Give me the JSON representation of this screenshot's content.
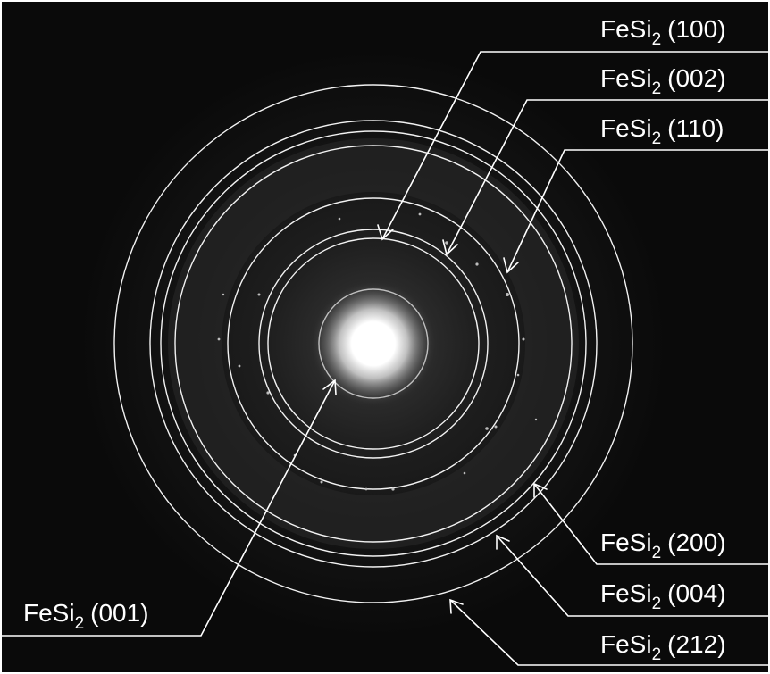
{
  "figure": {
    "colors": {
      "background": "#0d0d0d",
      "rings": "#f2f2f2",
      "annotations": "#ffffff",
      "beam": "#ffffff"
    },
    "labels": [
      {
        "id": "fesi2-100",
        "compound": "FeSi",
        "subscript": "2",
        "index": "(100)"
      },
      {
        "id": "fesi2-002",
        "compound": "FeSi",
        "subscript": "2",
        "index": "(002)"
      },
      {
        "id": "fesi2-110",
        "compound": "FeSi",
        "subscript": "2",
        "index": "(110)"
      },
      {
        "id": "fesi2-200",
        "compound": "FeSi",
        "subscript": "2",
        "index": "(200)"
      },
      {
        "id": "fesi2-004",
        "compound": "FeSi",
        "subscript": "2",
        "index": "(004)"
      },
      {
        "id": "fesi2-212",
        "compound": "FeSi",
        "subscript": "2",
        "index": "(212)"
      },
      {
        "id": "fesi2-001",
        "compound": "FeSi",
        "subscript": "2",
        "index": "(001)"
      }
    ]
  }
}
